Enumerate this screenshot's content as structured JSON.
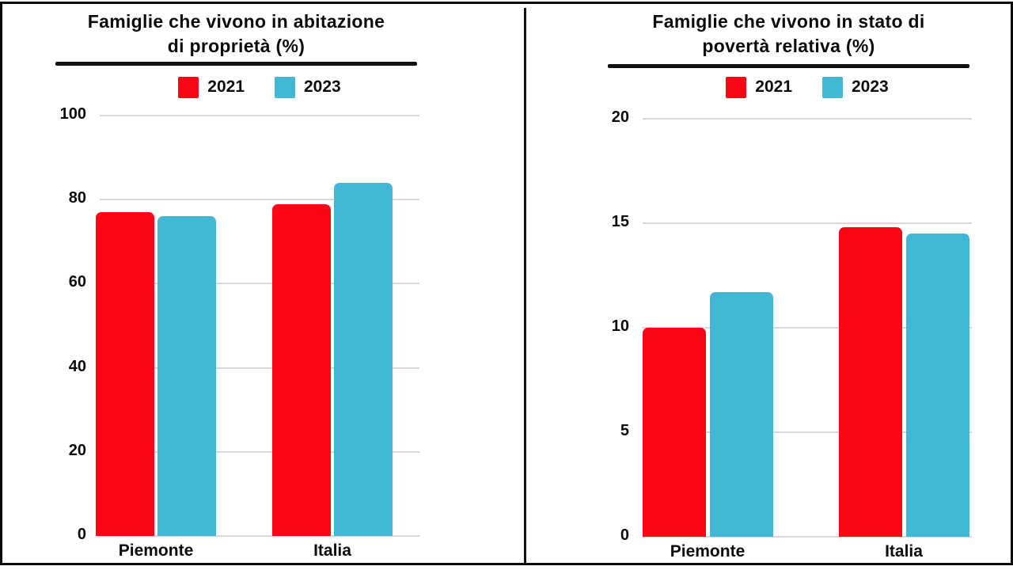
{
  "colors": {
    "red": "#FB0517",
    "blue": "#42B7D5",
    "gridline": "#D8D8D8",
    "frame": "#0A0A0A",
    "text": "#0C0C0C"
  },
  "panels": [
    {
      "title_line1": "Famiglie che vivono in abitazione",
      "title_line2": "di proprietà (%)"
    },
    {
      "title_line1": "Famiglie che vivono in stato di",
      "title_line2": "povertà relativa (%)"
    }
  ],
  "chart_data": [
    {
      "type": "bar",
      "title": "Famiglie che vivono in abitazione di proprietà (%)",
      "categories": [
        "Piemonte",
        "Italia"
      ],
      "series": [
        {
          "name": "2021",
          "color": "#FB0517",
          "values": [
            77,
            79
          ]
        },
        {
          "name": "2023",
          "color": "#42B7D5",
          "values": [
            76,
            84
          ]
        }
      ],
      "ylim": [
        0,
        100
      ],
      "yticks": [
        0,
        20,
        40,
        60,
        80,
        100
      ],
      "grid": true,
      "legend_position": "top"
    },
    {
      "type": "bar",
      "title": "Famiglie che vivono in stato di povertà relativa (%)",
      "categories": [
        "Piemonte",
        "Italia"
      ],
      "series": [
        {
          "name": "2021",
          "color": "#FB0517",
          "values": [
            10,
            14.8
          ]
        },
        {
          "name": "2023",
          "color": "#42B7D5",
          "values": [
            11.7,
            14.5
          ]
        }
      ],
      "ylim": [
        0,
        20
      ],
      "yticks": [
        0,
        5,
        10,
        15,
        20
      ],
      "grid": true,
      "legend_position": "top"
    }
  ]
}
